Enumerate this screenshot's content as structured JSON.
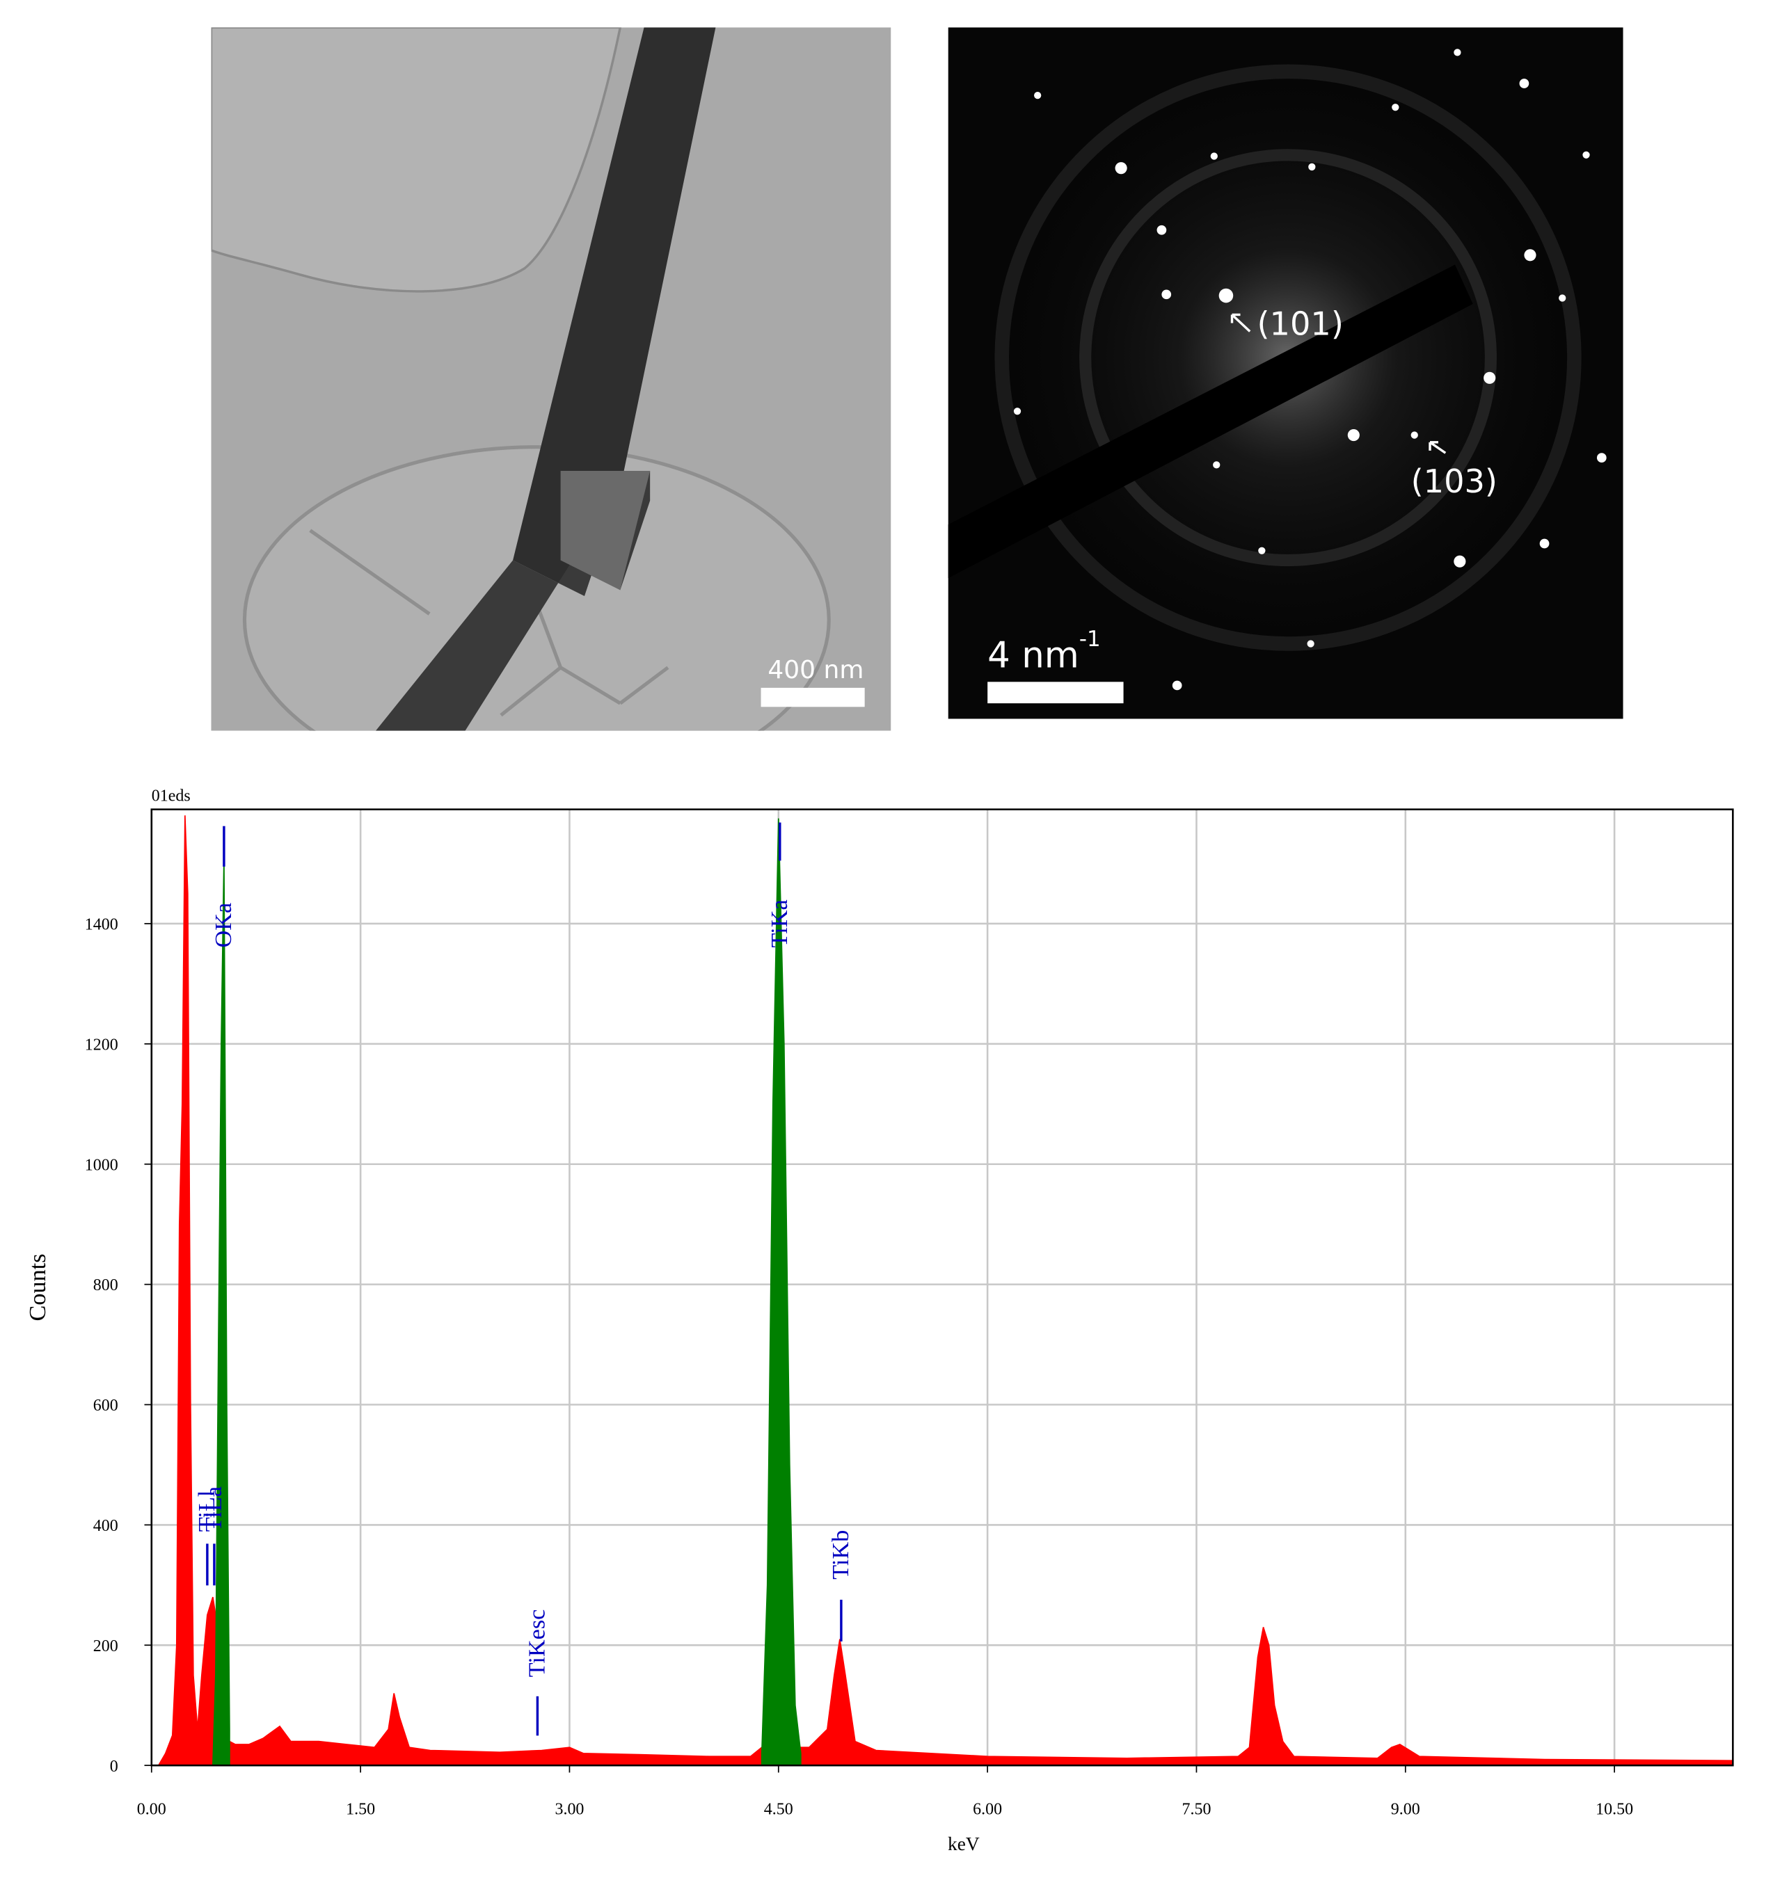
{
  "images": [
    {
      "scale_bar": "400 nm"
    },
    {
      "scale_bar": "4 nm",
      "scale_bar_exponent": "-1",
      "labels": [
        "(101)",
        "(103)"
      ]
    }
  ],
  "chart_data": {
    "type": "area",
    "title": "01eds",
    "x_label": "keV",
    "y_label": "Counts",
    "x": [
      0.05,
      0.1,
      0.15,
      0.18,
      0.2,
      0.22,
      0.24,
      0.26,
      0.28,
      0.3,
      0.33,
      0.36,
      0.4,
      0.44,
      0.46,
      0.48,
      0.5,
      0.52,
      0.54,
      0.56,
      0.6,
      0.7,
      0.8,
      0.92,
      1.0,
      1.2,
      1.4,
      1.6,
      1.7,
      1.74,
      1.78,
      1.85,
      2.0,
      2.5,
      2.8,
      3.0,
      3.1,
      3.5,
      4.0,
      4.3,
      4.38,
      4.42,
      4.46,
      4.5,
      4.54,
      4.58,
      4.62,
      4.66,
      4.72,
      4.85,
      4.9,
      4.94,
      4.98,
      5.05,
      5.2,
      6.0,
      7.0,
      7.8,
      7.88,
      7.94,
      7.98,
      8.02,
      8.06,
      8.12,
      8.2,
      8.8,
      8.9,
      8.96,
      9.1,
      10.0,
      11.34
    ],
    "series": [
      {
        "color": "#ff0000",
        "values": [
          0,
          20,
          50,
          200,
          900,
          1100,
          1580,
          1450,
          600,
          150,
          60,
          150,
          250,
          280,
          250,
          150,
          80,
          60,
          50,
          40,
          35,
          35,
          45,
          65,
          40,
          40,
          35,
          30,
          60,
          120,
          80,
          30,
          25,
          22,
          25,
          30,
          20,
          18,
          15,
          15,
          30,
          30,
          30,
          30,
          30,
          30,
          30,
          30,
          30,
          60,
          150,
          210,
          150,
          40,
          25,
          15,
          12,
          15,
          30,
          180,
          230,
          200,
          100,
          40,
          15,
          12,
          30,
          35,
          15,
          10,
          8
        ]
      },
      {
        "color": "#008000",
        "values": [
          null,
          null,
          null,
          null,
          null,
          null,
          null,
          null,
          null,
          null,
          null,
          null,
          null,
          0,
          150,
          700,
          1200,
          1510,
          600,
          60,
          null,
          null,
          null,
          null,
          null,
          null,
          null,
          null,
          null,
          null,
          null,
          null,
          null,
          null,
          null,
          null,
          null,
          null,
          null,
          null,
          20,
          300,
          1100,
          1575,
          1200,
          500,
          100,
          20,
          null,
          null,
          null,
          null,
          null,
          null,
          null,
          null,
          null,
          null,
          null,
          null,
          null,
          null,
          null,
          null,
          null,
          null,
          null,
          null,
          null,
          null,
          null
        ]
      }
    ],
    "annotations": [
      {
        "label": "OKa",
        "x": 0.52
      },
      {
        "label": "TiLl",
        "x": 0.4
      },
      {
        "label": "TiLa",
        "x": 0.45
      },
      {
        "label": "TiKesc",
        "x": 2.77
      },
      {
        "label": "TiKa",
        "x": 4.51
      },
      {
        "label": "TiKb",
        "x": 4.95
      }
    ],
    "annotation_color": "#0000c0",
    "xlim": [
      0,
      11.35
    ],
    "ylim": [
      0,
      1590
    ],
    "xticks": [
      {
        "value": 0,
        "label": "0.00"
      },
      {
        "value": 1.5,
        "label": "1.50"
      },
      {
        "value": 3,
        "label": "3.00"
      },
      {
        "value": 4.5,
        "label": "4.50"
      },
      {
        "value": 6,
        "label": "6.00"
      },
      {
        "value": 7.5,
        "label": "7.50"
      },
      {
        "value": 9,
        "label": "9.00"
      },
      {
        "value": 10.5,
        "label": "10.50"
      }
    ],
    "yticks": [
      0,
      200,
      400,
      600,
      800,
      1000,
      1200,
      1400
    ],
    "grid": true
  }
}
